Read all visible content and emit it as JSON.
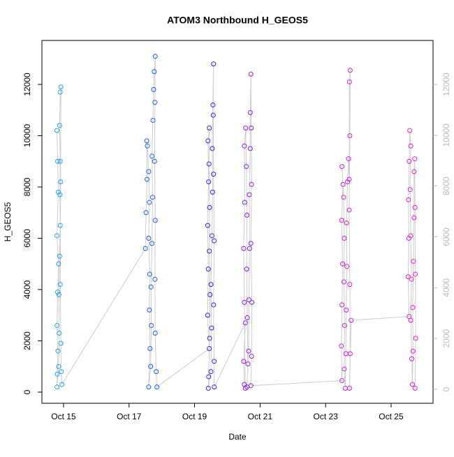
{
  "chart_data": {
    "type": "scatter",
    "title": "ATOM3 Northbound H_GEOS5",
    "x_label": "Date",
    "y_label": "H_GEOS5",
    "xlim": [
      14.34,
      26.28
    ],
    "xticks": [
      {
        "value": 15,
        "label": "Oct 15"
      },
      {
        "value": 17,
        "label": "Oct 17"
      },
      {
        "value": 19,
        "label": "Oct 19"
      },
      {
        "value": 21,
        "label": "Oct 21"
      },
      {
        "value": 23,
        "label": "Oct 23"
      },
      {
        "value": 25,
        "label": "Oct 25"
      }
    ],
    "ylim": [
      -435,
      13714
    ],
    "yticks": [
      0,
      2000,
      4000,
      6000,
      8000,
      10000,
      12000
    ],
    "y2lim": [
      -549,
      13730
    ],
    "y2ticks": [
      0,
      2000,
      4000,
      6000,
      8000,
      10000,
      12000
    ],
    "y2_color": "#bbbbbb",
    "line_color": "#cccccc",
    "clusters": [
      {
        "color": "#1fa3ee",
        "x": [
          14.8,
          14.82,
          14.84,
          14.8,
          14.85,
          14.82,
          14.8,
          14.83,
          14.81,
          14.8,
          14.85,
          14.87,
          14.86,
          14.88,
          14.9,
          14.89,
          14.9,
          14.88,
          14.9,
          14.92,
          14.91,
          14.9,
          14.92,
          14.93,
          14.95
        ],
        "y": [
          10200,
          9000,
          7800,
          6100,
          5000,
          3900,
          2600,
          1600,
          700,
          200,
          1000,
          2300,
          3800,
          5300,
          6500,
          7700,
          9000,
          10400,
          11700,
          11900,
          8200,
          4200,
          1900,
          800,
          300
        ]
      },
      {
        "color": "#1a5ff0",
        "x": [
          17.5,
          17.52,
          17.55,
          17.54,
          17.56,
          17.6,
          17.62,
          17.6,
          17.63,
          17.62,
          17.64,
          17.6,
          17.66,
          17.68,
          17.67,
          17.7,
          17.72,
          17.7,
          17.73,
          17.75,
          17.77,
          17.8,
          17.79,
          17.78,
          17.8,
          17.79,
          17.8,
          17.83,
          17.85
        ],
        "y": [
          5600,
          7000,
          8300,
          9800,
          9600,
          8600,
          7400,
          6000,
          4600,
          3200,
          1700,
          200,
          1000,
          2600,
          4100,
          5800,
          7600,
          9200,
          10600,
          11800,
          12500,
          13100,
          11300,
          9000,
          6700,
          4400,
          2300,
          800,
          200
        ]
      },
      {
        "color": "#3d22e8",
        "x": [
          19.45,
          19.4,
          19.42,
          19.4,
          19.43,
          19.41,
          19.45,
          19.44,
          19.46,
          19.45,
          19.47,
          19.46,
          19.43,
          19.42,
          19.5,
          19.52,
          19.5,
          19.53,
          19.55,
          19.54,
          19.56,
          19.58,
          19.57,
          19.58,
          19.6,
          19.58,
          19.6,
          19.6
        ],
        "y": [
          1700,
          3000,
          4800,
          6500,
          8200,
          9800,
          10300,
          8900,
          7200,
          5500,
          3800,
          2100,
          600,
          150,
          800,
          2500,
          4200,
          6100,
          7800,
          9500,
          11200,
          12800,
          10800,
          8500,
          5900,
          3400,
          1200,
          200
        ]
      },
      {
        "color": "#8a1ee8",
        "x": [
          20.55,
          20.5,
          20.52,
          20.55,
          20.52,
          20.5,
          20.53,
          20.52,
          20.56,
          20.58,
          20.6,
          20.59,
          20.61,
          20.63,
          20.6,
          20.65,
          20.66,
          20.68,
          20.67,
          20.7,
          20.7,
          20.72,
          20.73,
          20.74,
          20.72,
          20.75,
          20.74,
          20.72
        ],
        "y": [
          2700,
          1200,
          300,
          150,
          3500,
          5600,
          7400,
          9600,
          10300,
          8800,
          6900,
          4800,
          2900,
          1100,
          200,
          1600,
          3600,
          5600,
          7700,
          9500,
          10900,
          12400,
          10300,
          8100,
          5800,
          3500,
          1400,
          250
        ]
      },
      {
        "color": "#d01ee2",
        "x": [
          23.5,
          23.48,
          23.5,
          23.52,
          23.49,
          23.53,
          23.5,
          23.55,
          23.57,
          23.56,
          23.58,
          23.57,
          23.6,
          23.62,
          23.63,
          23.65,
          23.64,
          23.67,
          23.7,
          23.72,
          23.73,
          23.75,
          23.74,
          23.72,
          23.74,
          23.75,
          23.73,
          23.78
        ],
        "y": [
          450,
          1800,
          3400,
          5000,
          6700,
          8100,
          8800,
          7600,
          6000,
          4300,
          2600,
          900,
          150,
          1500,
          3200,
          4900,
          6600,
          8200,
          9100,
          8300,
          12100,
          12550,
          10000,
          7100,
          4200,
          1500,
          150,
          2800
        ]
      },
      {
        "color": "#e81ed0",
        "x": [
          25.55,
          25.52,
          25.54,
          25.53,
          25.55,
          25.57,
          25.6,
          25.58,
          25.6,
          25.62,
          25.6,
          25.63,
          25.65,
          25.67,
          25.66,
          25.68,
          25.7,
          25.7,
          25.72,
          25.73,
          25.74,
          25.75,
          25.73
        ],
        "y": [
          2950,
          4500,
          6000,
          7500,
          9000,
          10200,
          9600,
          7900,
          6100,
          4400,
          2800,
          1300,
          300,
          1600,
          3300,
          5100,
          6800,
          8600,
          9100,
          7200,
          4600,
          2100,
          150
        ]
      }
    ]
  }
}
